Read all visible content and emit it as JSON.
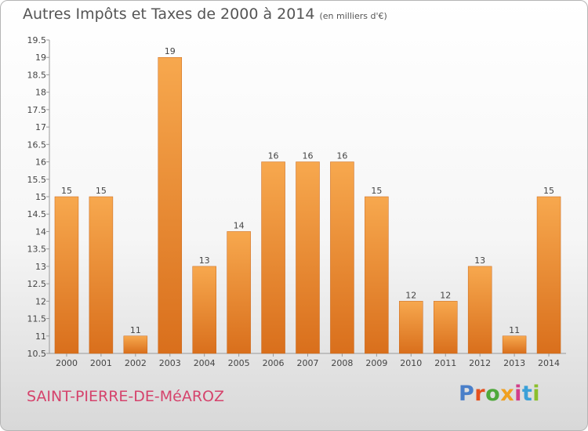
{
  "header": {
    "title": "Autres Impôts et Taxes de 2000 à 2014",
    "unit": "(en milliers d'€)"
  },
  "footer": {
    "commune": "SAINT-PIERRE-DE-MéAROZ",
    "logo": "Proxiti",
    "logo_colors": [
      "#4a7fc9",
      "#e5501e",
      "#4fa83b",
      "#f0a020",
      "#d23d8a",
      "#3aa0d8",
      "#8bbf2c"
    ]
  },
  "colors": {
    "bar_light": "#f7a84e",
    "bar_dark": "#d96f1c",
    "commune": "#d5436c",
    "text": "#555555"
  },
  "chart_data": {
    "type": "bar",
    "title": "Autres Impôts et Taxes de 2000 à 2014",
    "xlabel": "",
    "ylabel": "",
    "categories": [
      "2000",
      "2001",
      "2002",
      "2003",
      "2004",
      "2005",
      "2006",
      "2007",
      "2008",
      "2009",
      "2010",
      "2011",
      "2012",
      "2013",
      "2014"
    ],
    "values": [
      15,
      15,
      11,
      19,
      13,
      14,
      16,
      16,
      16,
      15,
      12,
      12,
      13,
      11,
      15
    ],
    "data_labels": [
      "15",
      "15",
      "11",
      "19",
      "13",
      "14",
      "16",
      "16",
      "16",
      "15",
      "12",
      "12",
      "13",
      "11",
      "15"
    ],
    "ylim": [
      10.5,
      19.5
    ],
    "yticks": [
      "10.5",
      "11",
      "11.5",
      "12",
      "12.5",
      "13",
      "13.5",
      "14",
      "14.5",
      "15",
      "15.5",
      "16",
      "16.5",
      "17",
      "17.5",
      "18",
      "18.5",
      "19",
      "19.5"
    ],
    "grid": false,
    "legend": "none"
  }
}
